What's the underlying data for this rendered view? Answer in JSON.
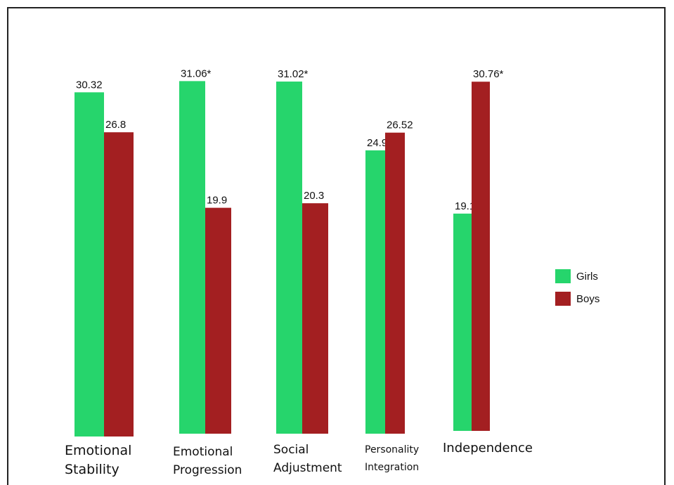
{
  "chart_data": {
    "type": "bar",
    "categories": [
      [
        "Emotional",
        "Stability"
      ],
      [
        "Emotional",
        "Progression"
      ],
      [
        "Social",
        "Adjustment"
      ],
      [
        "Personality",
        "Integration"
      ],
      [
        "Independence"
      ]
    ],
    "series": [
      {
        "name": "Girls",
        "color": "#26d56c",
        "values": [
          30.32,
          31.06,
          31.02,
          24.96,
          19.14
        ],
        "labels": [
          "30.32",
          "31.06*",
          "31.02*",
          "24.96",
          "19.14"
        ]
      },
      {
        "name": "Boys",
        "color": "#a31f21",
        "values": [
          26.8,
          19.9,
          20.3,
          26.52,
          30.76
        ],
        "labels": [
          "26.8",
          "19.9",
          "20.3",
          "26.52",
          "30.76*"
        ]
      }
    ],
    "legend_position": "right",
    "grid": false,
    "title": "",
    "xlabel": "",
    "ylabel": ""
  }
}
